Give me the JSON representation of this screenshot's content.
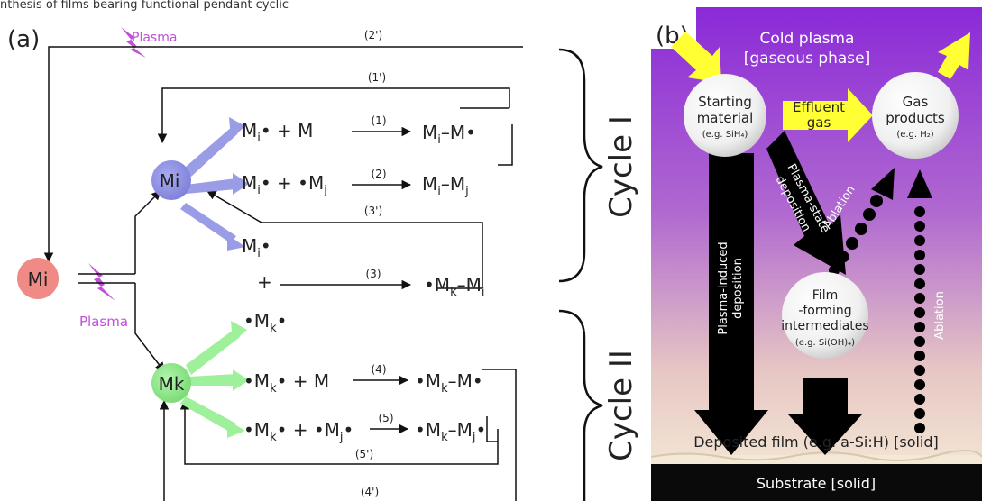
{
  "header_fragment": "nthesis of films bearing functional pendant cyclic",
  "panel_a": {
    "label": "(a)",
    "plasma_top": "Plasma",
    "plasma_bottom": "Plasma",
    "start_node": "Mi",
    "node_i": "Mi",
    "node_k": "Mk",
    "path_labels": {
      "p2p": "(2')",
      "p1p": "(1')",
      "p1": "(1)",
      "p2": "(2)",
      "p3p": "(3')",
      "p3": "(3)",
      "p4": "(4)",
      "p5": "(5)",
      "p5p": "(5')",
      "p4p": "(4')"
    },
    "cycle_1": "Cycle I",
    "cycle_2": "Cycle II"
  },
  "panel_b": {
    "label": "(b)",
    "cold_plasma": "Cold plasma",
    "cold_plasma_phase": "[gaseous phase]",
    "starting_material": [
      "Starting",
      "material"
    ],
    "starting_material_eg": "(e.g. SiH₄)",
    "effluent_gas": [
      "Effluent",
      "gas"
    ],
    "gas_products": [
      "Gas",
      "products"
    ],
    "gas_products_eg": "(e.g. H₂)",
    "plasma_state_deposition": [
      "Plasma-state",
      "deposition"
    ],
    "plasma_induced_deposition": [
      "Plasma-induced",
      "deposition"
    ],
    "ablation_left": "Ablation",
    "ablation_right": "Ablation",
    "film_forming": [
      "Film",
      "-forming",
      "intermediates"
    ],
    "film_forming_eg": "(e.g. Si(OH)₄)",
    "deposited_film": "Deposited film (e.g. a-Si:H) [solid]",
    "substrate": "Substrate [solid]"
  },
  "colors": {
    "start_node": "#f08a86",
    "node_i": "#8c8ee2",
    "node_k": "#8fe88a",
    "plasma": "#c050d8",
    "purple_bg": "#8a2ad8",
    "arrow_yellow": "#ffff33"
  }
}
